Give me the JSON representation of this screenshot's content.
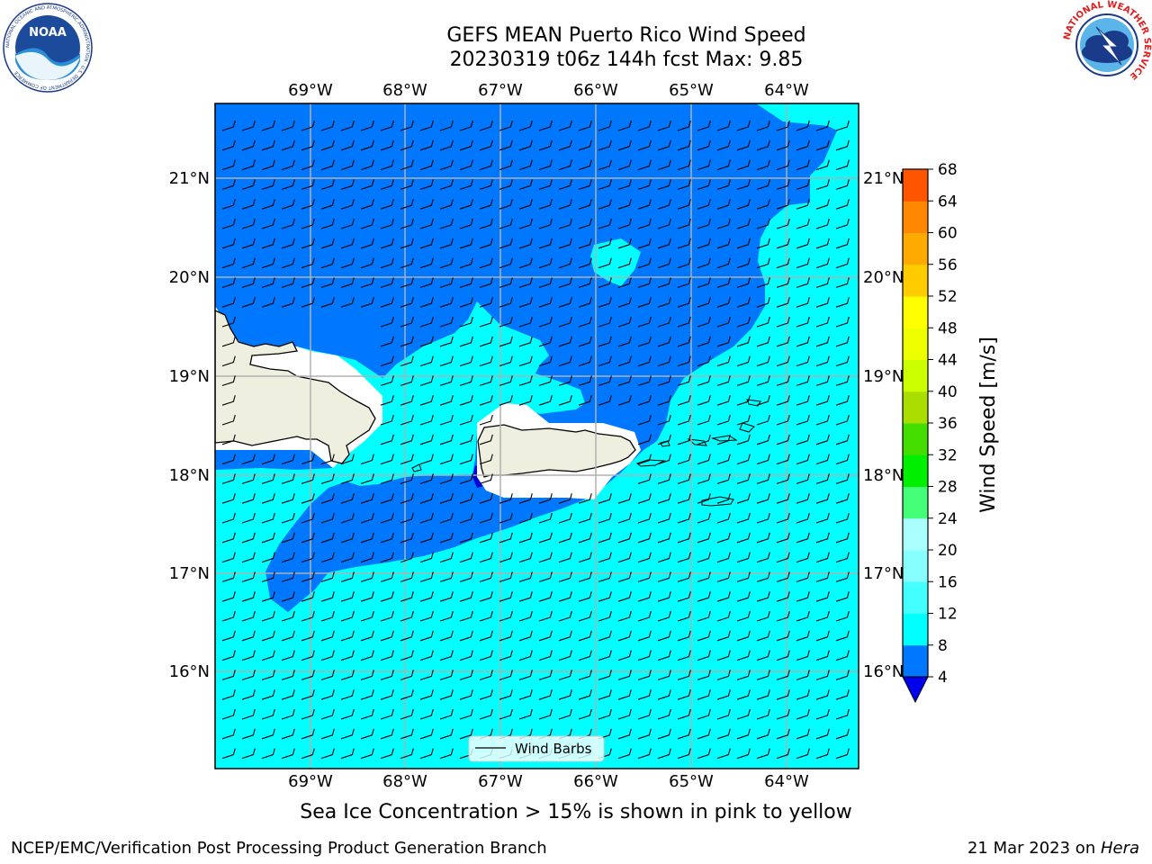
{
  "title": {
    "line1": "GEFS MEAN Puerto Rico Wind Speed",
    "line2": "20230319 t06z 144h fcst   Max: 9.85"
  },
  "logos": {
    "left": {
      "name": "noaa-logo",
      "text": "NOAA",
      "ring_text": "NATIONAL OCEANIC AND ATMOSPHERIC ADMINISTRATION · U.S. DEPARTMENT OF COMMERCE"
    },
    "right": {
      "name": "nws-logo",
      "ring_text": "NATIONAL WEATHER SERVICE"
    }
  },
  "map": {
    "lon_labels": [
      "69°W",
      "68°W",
      "67°W",
      "66°W",
      "65°W",
      "64°W"
    ],
    "lat_labels": [
      "21°N",
      "20°N",
      "19°N",
      "18°N",
      "17°N",
      "16°N"
    ],
    "colors": {
      "ocean_dark": "#0077ff",
      "ocean_light": "#00ffff",
      "land": "#efefdf",
      "deep_blue": "#0000dd",
      "grid": "#b0b0b0"
    },
    "legend_label": "Wind Barbs"
  },
  "colorbar": {
    "label": "Wind Speed [m/s]",
    "ticks": [
      "4",
      "8",
      "12",
      "16",
      "20",
      "24",
      "28",
      "32",
      "36",
      "40",
      "44",
      "48",
      "52",
      "56",
      "60",
      "64",
      "68"
    ],
    "colors": [
      "#0077ff",
      "#00ffff",
      "#44ffff",
      "#88ffff",
      "#aaffff",
      "#44ff77",
      "#00ee00",
      "#44dd00",
      "#aadd00",
      "#ccff00",
      "#eeff00",
      "#ffff00",
      "#ffcc00",
      "#ffaa00",
      "#ff8800",
      "#ff5500",
      "#ff2200",
      "#ff0000"
    ],
    "extend_color": "#0000ee"
  },
  "note": "Sea Ice Concentration > 15% is shown in pink to yellow",
  "footer": {
    "left": "NCEP/EMC/Verification Post Processing Product Generation Branch",
    "right_prefix": "21 Mar 2023 on ",
    "right_host": "Hera"
  }
}
